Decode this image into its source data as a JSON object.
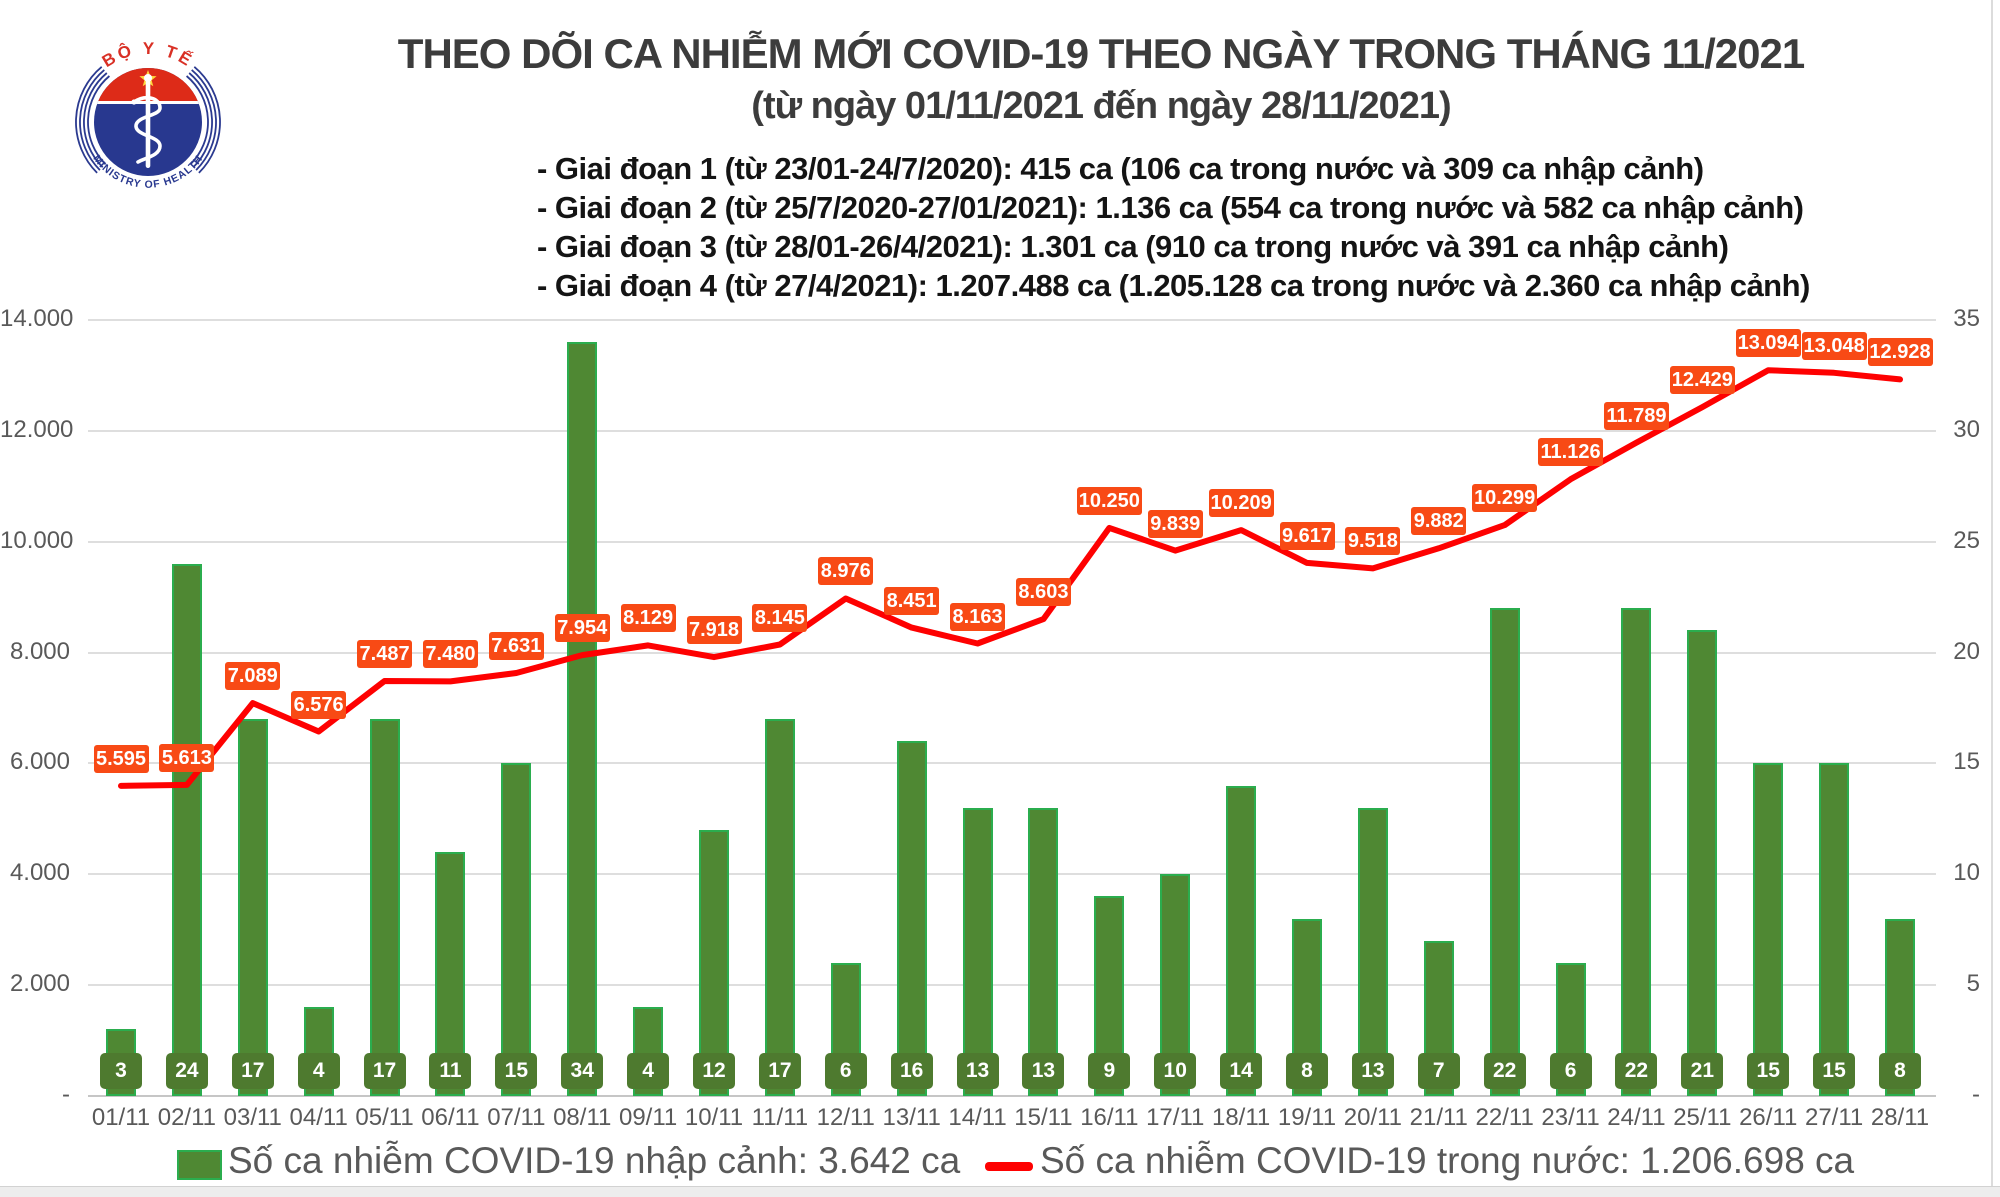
{
  "header": {
    "title": "THEO DÕI CA NHIỄM MỚI COVID-19 THEO NGÀY TRONG THÁNG 11/2021",
    "subtitle": "(từ ngày 01/11/2021 đến ngày 28/11/2021)",
    "phases": [
      "- Giai đoạn 1 (từ 23/01-24/7/2020): 415 ca (106 ca trong nước và 309 ca nhập cảnh)",
      "- Giai đoạn 2 (từ 25/7/2020-27/01/2021): 1.136 ca (554 ca trong nước và 582 ca nhập cảnh)",
      "- Giai đoạn 3 (từ 28/01-26/4/2021): 1.301 ca (910 ca trong nước và 391 ca nhập cảnh)",
      "- Giai đoạn 4 (từ 27/4/2021): 1.207.488 ca (1.205.128 ca trong nước và 2.360 ca nhập cảnh)"
    ]
  },
  "logo": {
    "top_text": "BỘ Y TẾ",
    "bottom_text": "MINISTRY OF HEALTH"
  },
  "legend": {
    "imported": "Số ca nhiễm COVID-19 nhập cảnh: 3.642 ca",
    "domestic": "Số ca nhiễm COVID-19 trong nước: 1.206.698 ca"
  },
  "colors": {
    "bar_fill": "#4f8833",
    "bar_border": "#2bad4e",
    "bar_tag_fill": "#4e7a2f",
    "line": "#fe0101",
    "line_tag_fill": "#f84a15",
    "axis_text": "#595959",
    "title_text": "#3c3c3c"
  },
  "chart_data": {
    "type": "bar+line",
    "title": "THEO DÕI CA NHIỄM MỚI COVID-19 THEO NGÀY TRONG THÁNG 11/2021",
    "categories": [
      "01/11",
      "02/11",
      "03/11",
      "04/11",
      "05/11",
      "06/11",
      "07/11",
      "08/11",
      "09/11",
      "10/11",
      "11/11",
      "12/11",
      "13/11",
      "14/11",
      "15/11",
      "16/11",
      "17/11",
      "18/11",
      "19/11",
      "20/11",
      "21/11",
      "22/11",
      "23/11",
      "24/11",
      "25/11",
      "26/11",
      "27/11",
      "28/11"
    ],
    "series": [
      {
        "name": "Số ca nhiễm COVID-19 nhập cảnh",
        "type": "bar",
        "axis": "right",
        "total": "3.642 ca",
        "values": [
          3,
          24,
          17,
          4,
          17,
          11,
          15,
          34,
          4,
          12,
          17,
          6,
          16,
          13,
          13,
          9,
          10,
          14,
          8,
          13,
          7,
          22,
          6,
          22,
          21,
          15,
          15,
          8
        ]
      },
      {
        "name": "Số ca nhiễm COVID-19 trong nước",
        "type": "line",
        "axis": "left",
        "total": "1.206.698 ca",
        "values": [
          5595,
          5613,
          7089,
          6576,
          7487,
          7480,
          7631,
          7954,
          8129,
          7918,
          8145,
          8976,
          8451,
          8163,
          8603,
          10250,
          9839,
          10209,
          9617,
          9518,
          9882,
          10299,
          11126,
          11789,
          12429,
          13094,
          13048,
          12928
        ],
        "labels": [
          "5.595",
          "5.613",
          "7.089",
          "6.576",
          "7.487",
          "7.480",
          "7.631",
          "7.954",
          "8.129",
          "7.918",
          "8.145",
          "8.976",
          "8.451",
          "8.163",
          "8.603",
          "10.250",
          "9.839",
          "10.209",
          "9.617",
          "9.518",
          "9.882",
          "10.299",
          "11.126",
          "11.789",
          "12.429",
          "13.094",
          "13.048",
          "12.928"
        ]
      }
    ],
    "left_axis": {
      "min": 0,
      "max": 14000,
      "tick": 2000,
      "tick_labels_top_down": [
        "14.000",
        "12.000",
        "10.000",
        "8.000",
        "6.000",
        "4.000",
        "2.000",
        "-"
      ]
    },
    "right_axis": {
      "min": 0,
      "max": 35,
      "tick": 5,
      "tick_labels_top_down": [
        "35",
        "30",
        "25",
        "20",
        "15",
        "10",
        "5",
        "-"
      ]
    },
    "grid": true,
    "legend_position": "bottom"
  }
}
